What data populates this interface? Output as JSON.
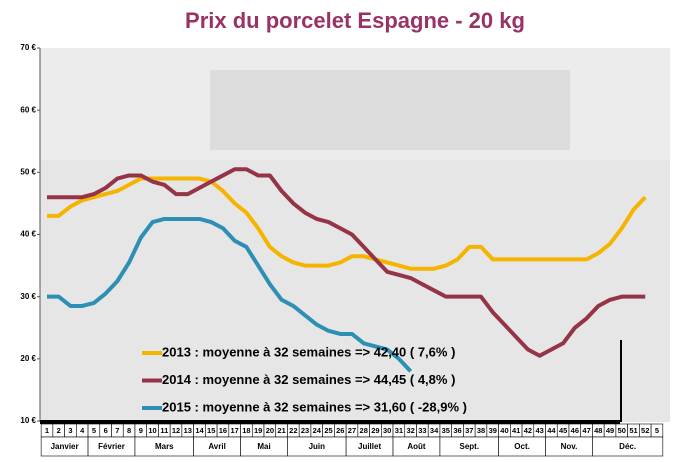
{
  "chart_data": {
    "type": "line",
    "title": "Prix du porcelet Espagne - 20 kg",
    "categories": [
      "1",
      "2",
      "3",
      "4",
      "5",
      "6",
      "7",
      "8",
      "9",
      "10",
      "11",
      "12",
      "13",
      "14",
      "15",
      "16",
      "17",
      "18",
      "19",
      "20",
      "21",
      "22",
      "23",
      "24",
      "25",
      "26",
      "27",
      "28",
      "29",
      "30",
      "31",
      "32",
      "33",
      "34",
      "35",
      "36",
      "37",
      "38",
      "39",
      "40",
      "41",
      "42",
      "43",
      "44",
      "45",
      "46",
      "47",
      "48",
      "49",
      "50",
      "51",
      "52",
      "5"
    ],
    "months": [
      {
        "name": "Janvier",
        "first_week": 1,
        "last_week": 4
      },
      {
        "name": "Février",
        "first_week": 5,
        "last_week": 8
      },
      {
        "name": "Mars",
        "first_week": 9,
        "last_week": 13
      },
      {
        "name": "Avril",
        "first_week": 14,
        "last_week": 17
      },
      {
        "name": "Mai",
        "first_week": 18,
        "last_week": 21
      },
      {
        "name": "Juin",
        "first_week": 22,
        "last_week": 26
      },
      {
        "name": "Juillet",
        "first_week": 27,
        "last_week": 30
      },
      {
        "name": "Août",
        "first_week": 31,
        "last_week": 34
      },
      {
        "name": "Sept.",
        "first_week": 35,
        "last_week": 39
      },
      {
        "name": "Oct.",
        "first_week": 40,
        "last_week": 43
      },
      {
        "name": "Nov.",
        "first_week": 44,
        "last_week": 47
      },
      {
        "name": "Déc.",
        "first_week": 48,
        "last_week": 53
      }
    ],
    "series": [
      {
        "name": "2013 : moyenne à  32 semaines => 42,40 ( 7,6% )",
        "color": "#f5b400",
        "values": [
          43,
          43,
          44.5,
          45.5,
          46,
          46.5,
          47,
          48,
          49,
          49,
          49,
          49,
          49,
          49,
          48.5,
          47,
          45,
          43.5,
          41,
          38,
          36.5,
          35.5,
          35,
          35,
          35,
          35.5,
          36.5,
          36.5,
          36,
          35.5,
          35,
          34.5,
          34.5,
          34.5,
          35,
          36,
          38,
          38,
          36,
          36,
          36,
          36,
          36,
          36,
          36,
          36,
          36,
          37,
          38.5,
          41,
          44,
          46,
          null
        ]
      },
      {
        "name": "2014 : moyenne à  32 semaines => 44,45 ( 4,8% )",
        "color": "#953347",
        "values": [
          46,
          46,
          46,
          46,
          46.5,
          47.5,
          49,
          49.5,
          49.5,
          48.5,
          48,
          46.5,
          46.5,
          47.5,
          48.5,
          49.5,
          50.5,
          50.5,
          49.5,
          49.5,
          47,
          45,
          43.5,
          42.5,
          42,
          41,
          40,
          38,
          36,
          34,
          33.5,
          33,
          32,
          31,
          30,
          30,
          30,
          30,
          27.5,
          25.5,
          23.5,
          21.5,
          20.5,
          21.5,
          22.5,
          25,
          26.5,
          28.5,
          29.5,
          30,
          30,
          30,
          null
        ]
      },
      {
        "name": "2015 : moyenne à  32 semaines => 31,60 ( -28,9% )",
        "color": "#2e8fb5",
        "values": [
          30,
          30,
          28.5,
          28.5,
          29,
          30.5,
          32.5,
          35.5,
          39.5,
          42,
          42.5,
          42.5,
          42.5,
          42.5,
          42,
          41,
          39,
          38,
          35,
          32,
          29.5,
          28.5,
          27,
          25.5,
          24.5,
          24,
          24,
          22.5,
          22,
          21.5,
          20,
          18,
          null,
          null,
          null,
          null,
          null,
          null,
          null,
          null,
          null,
          null,
          null,
          null,
          null,
          null,
          null,
          null,
          null,
          null,
          null,
          null,
          null
        ]
      }
    ],
    "ylim": [
      10,
      70
    ],
    "yticks": [
      {
        "value": 10,
        "label": "10 €"
      },
      {
        "value": 20,
        "label": "20 €"
      },
      {
        "value": 30,
        "label": "30 €"
      },
      {
        "value": 40,
        "label": "40 €"
      },
      {
        "value": 50,
        "label": "50 €"
      },
      {
        "value": 60,
        "label": "60 €"
      },
      {
        "value": 70,
        "label": "70 €"
      }
    ],
    "grid": false
  }
}
